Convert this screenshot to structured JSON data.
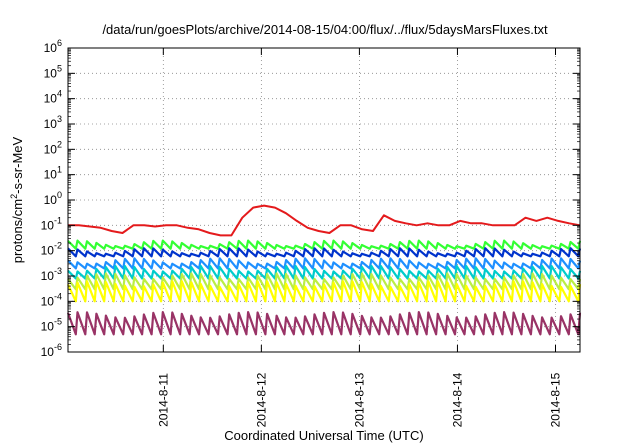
{
  "chart_data": {
    "type": "line",
    "title": "/data/run/goesPlots/archive/2014-08-15/04:00/flux/../flux/5daysMarsFluxes.txt",
    "xlabel": "Coordinated Universal Time (UTC)",
    "ylabel_parts": [
      "protons/cm",
      "2",
      "-s-sr-MeV"
    ],
    "yscale": "log",
    "ylim": [
      1e-06,
      1000000.0
    ],
    "xlim": [
      "2014-08-10T00:40",
      "2014-08-15T06:00"
    ],
    "grid": true,
    "legend": "none",
    "x_ticks": [
      "2014-8-11",
      "2014-8-12",
      "2014-8-13",
      "2014-8-14",
      "2014-8-15"
    ],
    "y_ticks": [
      {
        "base": "10",
        "exp": "-6"
      },
      {
        "base": "10",
        "exp": "-5"
      },
      {
        "base": "10",
        "exp": "-4"
      },
      {
        "base": "10",
        "exp": "-3"
      },
      {
        "base": "10",
        "exp": "-2"
      },
      {
        "base": "10",
        "exp": "-1"
      },
      {
        "base": "10",
        "exp": "0"
      },
      {
        "base": "10",
        "exp": "1"
      },
      {
        "base": "10",
        "exp": "2"
      },
      {
        "base": "10",
        "exp": "3"
      },
      {
        "base": "10",
        "exp": "4"
      },
      {
        "base": "10",
        "exp": "5"
      },
      {
        "base": "10",
        "exp": "6"
      }
    ],
    "series": [
      {
        "color": "#e41a1c",
        "values_approx": [
          0.1,
          0.1,
          0.09,
          0.08,
          0.06,
          0.05,
          0.1,
          0.1,
          0.09,
          0.1,
          0.1,
          0.08,
          0.07,
          0.05,
          0.04,
          0.04,
          0.2,
          0.5,
          0.6,
          0.5,
          0.3,
          0.15,
          0.08,
          0.06,
          0.05,
          0.1,
          0.1,
          0.07,
          0.06,
          0.25,
          0.15,
          0.12,
          0.1,
          0.12,
          0.1,
          0.1,
          0.15,
          0.12,
          0.12,
          0.1,
          0.1,
          0.1,
          0.2,
          0.15,
          0.2,
          0.15,
          0.12,
          0.1
        ]
      },
      {
        "color": "#33ff33",
        "values_approx": [
          0.012,
          0.02,
          0.015,
          0.02,
          0.015,
          0.02
        ]
      },
      {
        "color": "#0033cc",
        "values_approx": [
          0.006,
          0.01,
          0.008,
          0.01
        ]
      },
      {
        "color": "#1e90ff",
        "values_approx": [
          0.002,
          0.004,
          0.003,
          0.004
        ]
      },
      {
        "color": "#00cccc",
        "values_approx": [
          0.0008,
          0.002,
          0.0012,
          0.002
        ]
      },
      {
        "color": "#bbee44",
        "values_approx": [
          0.0003,
          0.001,
          0.0005,
          0.001
        ]
      },
      {
        "color": "#ffff00",
        "values_approx": [
          0.0001,
          0.0005,
          0.0002,
          0.0005
        ]
      },
      {
        "color": "#993366",
        "values_approx": [
          5e-06,
          3e-05,
          1e-05,
          3e-05
        ]
      }
    ]
  }
}
